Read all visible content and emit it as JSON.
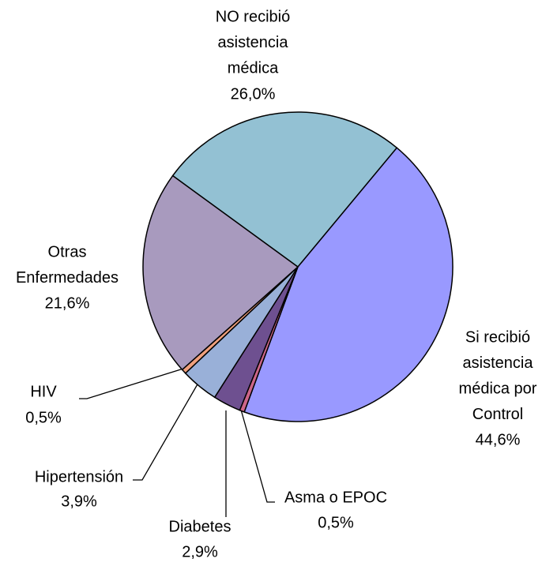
{
  "chart_data": {
    "type": "pie",
    "categories": [
      [
        "Si recibió",
        "asistencia",
        "médica por",
        "Control"
      ],
      [
        "Asma o EPOC"
      ],
      [
        "Diabetes"
      ],
      [
        "Hipertensión"
      ],
      [
        "HIV"
      ],
      [
        "Otras",
        "Enfermedades"
      ],
      [
        "NO recibió",
        "asistencia",
        "médica"
      ]
    ],
    "values": [
      44.6,
      0.5,
      2.9,
      3.9,
      0.5,
      21.6,
      26.0
    ],
    "value_labels": [
      "44,6%",
      "0,5%",
      "2,9%",
      "3,9%",
      "0,5%",
      "21,6%",
      "26,0%"
    ],
    "colors": [
      "#9999ff",
      "#cc6688",
      "#6e5090",
      "#99b0d8",
      "#f0a07c",
      "#a89abe",
      "#93c1d3"
    ]
  }
}
